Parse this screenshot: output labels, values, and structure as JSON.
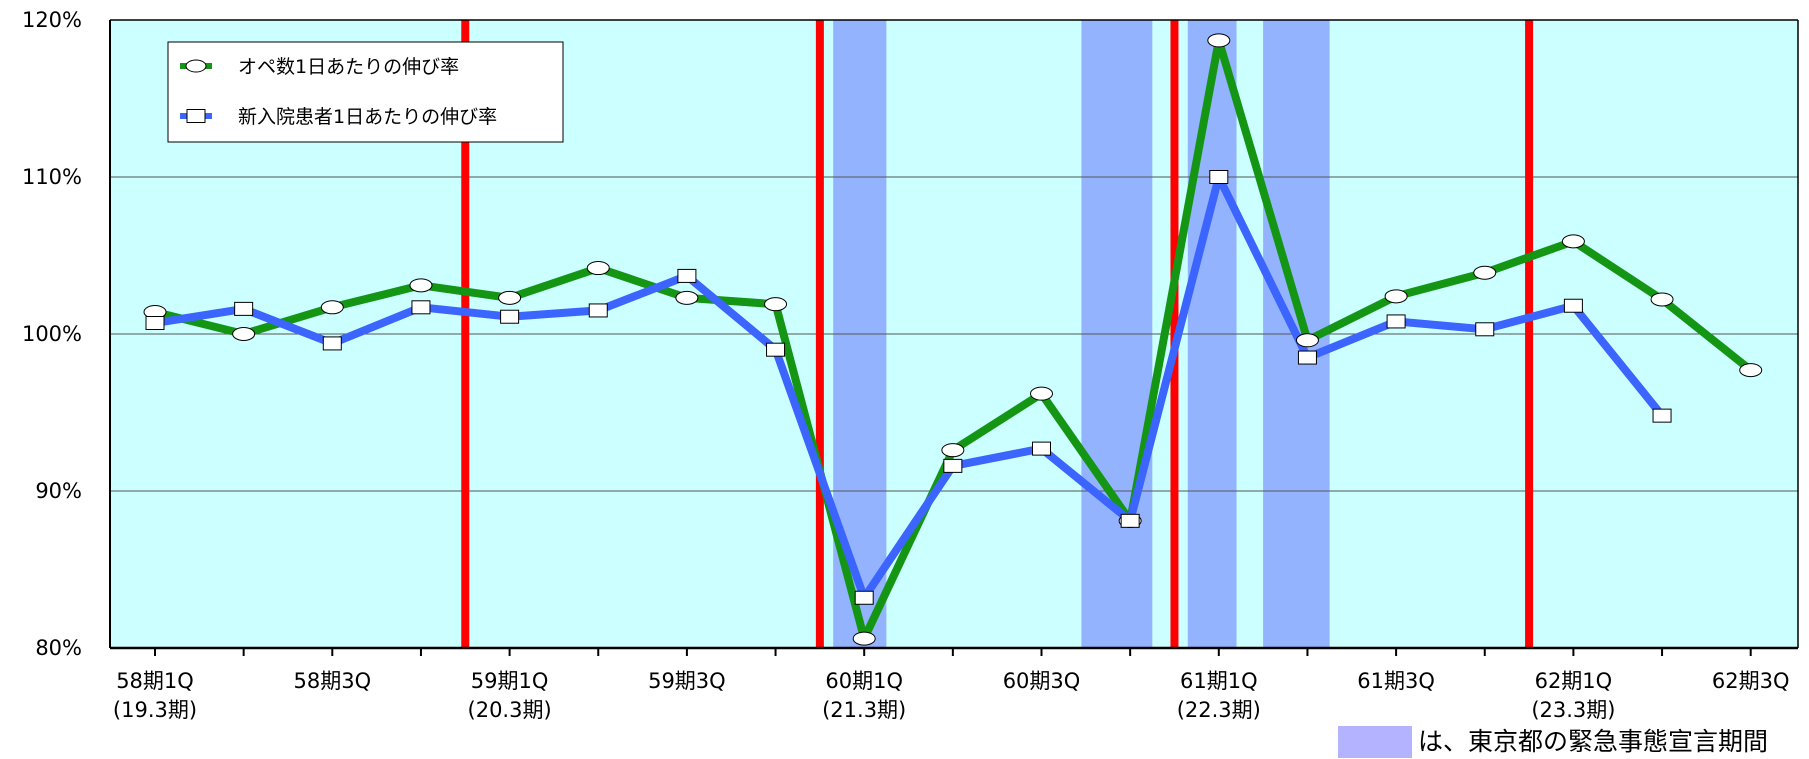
{
  "chart_data": {
    "type": "line",
    "x_labels": [
      {
        "line1": "58期1Q",
        "line2": "(19.3期)"
      },
      {
        "line1": "",
        "line2": ""
      },
      {
        "line1": "58期3Q",
        "line2": ""
      },
      {
        "line1": "",
        "line2": ""
      },
      {
        "line1": "59期1Q",
        "line2": "(20.3期)"
      },
      {
        "line1": "",
        "line2": ""
      },
      {
        "line1": "59期3Q",
        "line2": ""
      },
      {
        "line1": "",
        "line2": ""
      },
      {
        "line1": "60期1Q",
        "line2": "(21.3期)"
      },
      {
        "line1": "",
        "line2": ""
      },
      {
        "line1": "60期3Q",
        "line2": ""
      },
      {
        "line1": "",
        "line2": ""
      },
      {
        "line1": "61期1Q",
        "line2": "(22.3期)"
      },
      {
        "line1": "",
        "line2": ""
      },
      {
        "line1": "61期3Q",
        "line2": ""
      },
      {
        "line1": "",
        "line2": ""
      },
      {
        "line1": "62期1Q",
        "line2": "(23.3期)"
      },
      {
        "line1": "",
        "line2": ""
      },
      {
        "line1": "62期3Q",
        "line2": ""
      }
    ],
    "y_ticks": [
      {
        "value": 80,
        "label": "80%"
      },
      {
        "value": 90,
        "label": "90%"
      },
      {
        "value": 100,
        "label": "100%"
      },
      {
        "value": 110,
        "label": "110%"
      },
      {
        "value": 120,
        "label": "120%"
      }
    ],
    "ylim": [
      80,
      120
    ],
    "series": [
      {
        "name": "オペ数1日あたりの伸び率",
        "marker": "ellipse",
        "color": "#149614",
        "values": [
          101.4,
          100.0,
          101.7,
          103.1,
          102.3,
          104.2,
          102.3,
          101.9,
          80.6,
          92.6,
          96.2,
          88.1,
          118.7,
          99.6,
          102.4,
          103.9,
          105.9,
          102.2,
          97.7
        ]
      },
      {
        "name": "新入院患者1日あたりの伸び率",
        "marker": "square",
        "color": "#3c64ff",
        "values": [
          100.7,
          101.6,
          99.4,
          101.7,
          101.1,
          101.5,
          103.7,
          99.0,
          83.2,
          91.6,
          92.7,
          88.1,
          110.0,
          98.5,
          100.8,
          100.3,
          101.8,
          94.8,
          null
        ]
      }
    ],
    "period_boundaries": [
      3.5,
      7.5,
      11.5,
      15.5
    ],
    "emergency_periods": [
      [
        7.65,
        8.25
      ],
      [
        10.45,
        11.25
      ],
      [
        11.65,
        12.2
      ],
      [
        12.5,
        13.25
      ]
    ],
    "grid": true,
    "legend_position": "top-left",
    "note": "は、東京都の緊急事態宣言期間",
    "colors": {
      "plot_background": "#ccffff",
      "emergency_band": "#94b3ff",
      "period_line": "#ff0000",
      "note_swatch": "#b3b3ff"
    }
  }
}
